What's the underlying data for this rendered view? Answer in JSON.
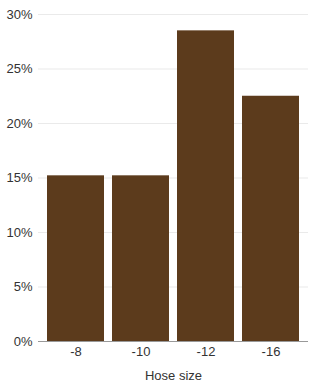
{
  "chart_data": {
    "type": "bar",
    "x_label": "Hose size",
    "categories": [
      "-8",
      "-10",
      "-12",
      "-16"
    ],
    "values": [
      15.2,
      15.2,
      28.5,
      22.5
    ],
    "color": "#5c3b1c",
    "ylim": [
      0,
      30
    ],
    "yticks": [
      {
        "value": 0,
        "label": "0%"
      },
      {
        "value": 5,
        "label": "5%"
      },
      {
        "value": 10,
        "label": "10%"
      },
      {
        "value": 15,
        "label": "15%"
      },
      {
        "value": 20,
        "label": "20%"
      },
      {
        "value": 25,
        "label": "25%"
      },
      {
        "value": 30,
        "label": "30%"
      }
    ],
    "grid": true
  }
}
